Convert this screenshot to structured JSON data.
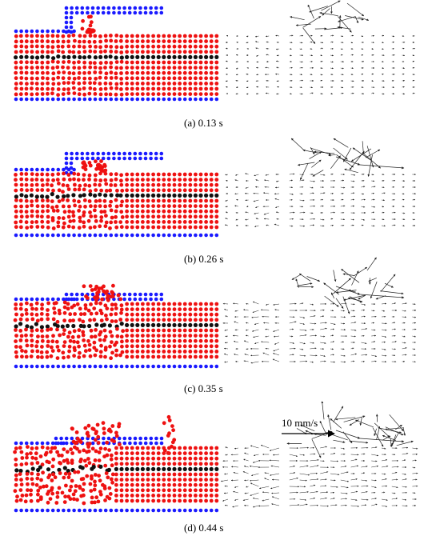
{
  "colors": {
    "wall": "#1a1aff",
    "fluid": "#ee1111",
    "tracer": "#111111",
    "vector": "#222222"
  },
  "panels": [
    {
      "id": "a",
      "caption": "(a) 0.13 s",
      "phase": 0.13
    },
    {
      "id": "b",
      "caption": "(b) 0.26 s",
      "phase": 0.26
    },
    {
      "id": "c",
      "caption": "(c) 0.35 s",
      "phase": 0.35
    },
    {
      "id": "d",
      "caption": "(d) 0.44 s",
      "phase": 0.44
    }
  ],
  "scale_bar": {
    "label": "10 mm/s",
    "icon": "arrow-right-icon"
  }
}
